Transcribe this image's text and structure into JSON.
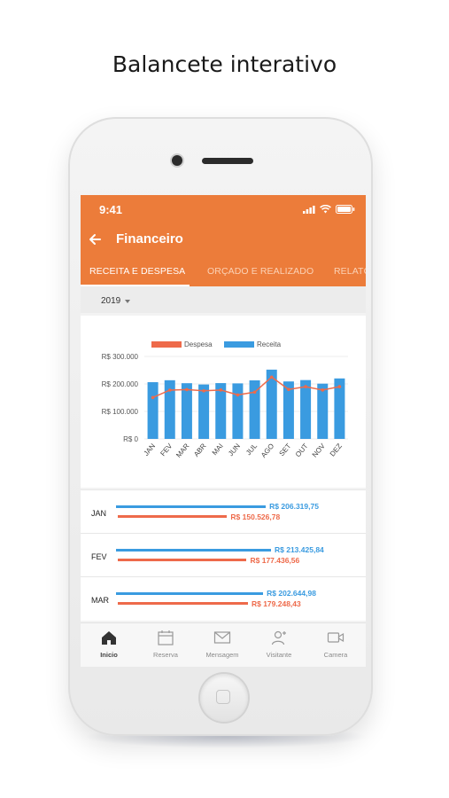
{
  "headline": "Balancete interativo",
  "status": {
    "time": "9:41"
  },
  "app": {
    "title": "Financeiro",
    "tabs": [
      {
        "label": "RECEITA E DESPESA",
        "active": true
      },
      {
        "label": "ORÇADO E REALIZADO",
        "active": false
      },
      {
        "label": "RELATÓ",
        "active": false
      }
    ],
    "year": "2019"
  },
  "colors": {
    "accent": "#ec7c3a",
    "receita": "#3a9be0",
    "despesa": "#ee6a4a"
  },
  "chart_data": {
    "type": "bar",
    "categories": [
      "JAN",
      "FEV",
      "MAR",
      "ABR",
      "MAI",
      "JUN",
      "JUL",
      "AGO",
      "SET",
      "OUT",
      "NOV",
      "DEZ"
    ],
    "series": [
      {
        "name": "Despesa",
        "render": "line",
        "values": [
          150526.78,
          177436.56,
          179248.43,
          175000,
          178000,
          160000,
          170000,
          225000,
          180000,
          190000,
          178000,
          190000
        ]
      },
      {
        "name": "Receita",
        "render": "bar",
        "values": [
          206319.75,
          213425.84,
          202644.98,
          198000,
          203000,
          202000,
          213000,
          252000,
          209000,
          214000,
          201000,
          220000
        ]
      }
    ],
    "yticks": [
      "R$ 0",
      "R$ 100.000",
      "R$ 200.000",
      "R$ 300.000"
    ],
    "ylim": [
      0,
      300000
    ],
    "legend": "top"
  },
  "summary": [
    {
      "month": "JAN",
      "receita": "R$ 206.319,75",
      "despesa": "R$ 150.526,78",
      "receita_value": 206319.75,
      "despesa_value": 150526.78
    },
    {
      "month": "FEV",
      "receita": "R$ 213.425,84",
      "despesa": "R$ 177.436,56",
      "receita_value": 213425.84,
      "despesa_value": 177436.56
    },
    {
      "month": "MAR",
      "receita": "R$ 202.644,98",
      "despesa": "R$ 179.248,43",
      "receita_value": 202644.98,
      "despesa_value": 179248.43
    }
  ],
  "nav": [
    {
      "label": "Inicio",
      "icon": "home-icon",
      "active": true
    },
    {
      "label": "Reserva",
      "icon": "calendar-icon",
      "active": false
    },
    {
      "label": "Mensagem",
      "icon": "envelope-icon",
      "active": false
    },
    {
      "label": "Visitante",
      "icon": "visitor-icon",
      "active": false
    },
    {
      "label": "Camera",
      "icon": "video-camera-icon",
      "active": false
    }
  ]
}
